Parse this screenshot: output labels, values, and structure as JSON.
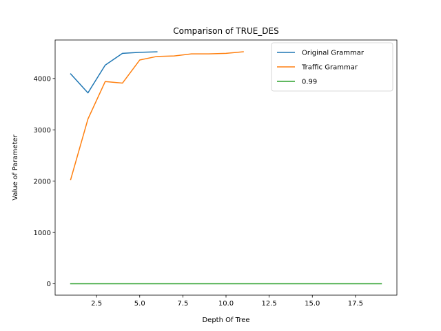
{
  "chart_data": {
    "type": "line",
    "title": "Comparison of TRUE_DES",
    "xlabel": "Depth Of Tree",
    "ylabel": "Value of Parameter",
    "xlim": [
      0.1,
      19.9
    ],
    "ylim": [
      -220,
      4750
    ],
    "xticks": [
      2.5,
      5.0,
      7.5,
      10.0,
      12.5,
      15.0,
      17.5
    ],
    "xtick_labels": [
      "2.5",
      "5.0",
      "7.5",
      "10.0",
      "12.5",
      "15.0",
      "17.5"
    ],
    "yticks": [
      0,
      1000,
      2000,
      3000,
      4000
    ],
    "ytick_labels": [
      "0",
      "1000",
      "2000",
      "3000",
      "4000"
    ],
    "grid": false,
    "legend_position": "top-right",
    "series": [
      {
        "name": "Original Grammar",
        "color": "#1f77b4",
        "x": [
          1,
          2,
          3,
          4,
          5,
          6
        ],
        "y": [
          4090,
          3720,
          4260,
          4490,
          4510,
          4520
        ]
      },
      {
        "name": "Traffic Grammar",
        "color": "#ff7f0e",
        "x": [
          1,
          2,
          3,
          4,
          5,
          6,
          7,
          8,
          9,
          10,
          11
        ],
        "y": [
          2030,
          3210,
          3940,
          3910,
          4360,
          4430,
          4440,
          4480,
          4480,
          4490,
          4520
        ]
      },
      {
        "name": "0.99",
        "color": "#2ca02c",
        "x": [
          1,
          2,
          3,
          4,
          5,
          6,
          7,
          8,
          9,
          10,
          11,
          12,
          13,
          14,
          15,
          16,
          17,
          18,
          19
        ],
        "y": [
          0.99,
          0.99,
          0.99,
          0.99,
          0.99,
          0.99,
          0.99,
          0.99,
          0.99,
          0.99,
          0.99,
          0.99,
          0.99,
          0.99,
          0.99,
          0.99,
          0.99,
          0.99,
          0.99
        ]
      }
    ]
  }
}
